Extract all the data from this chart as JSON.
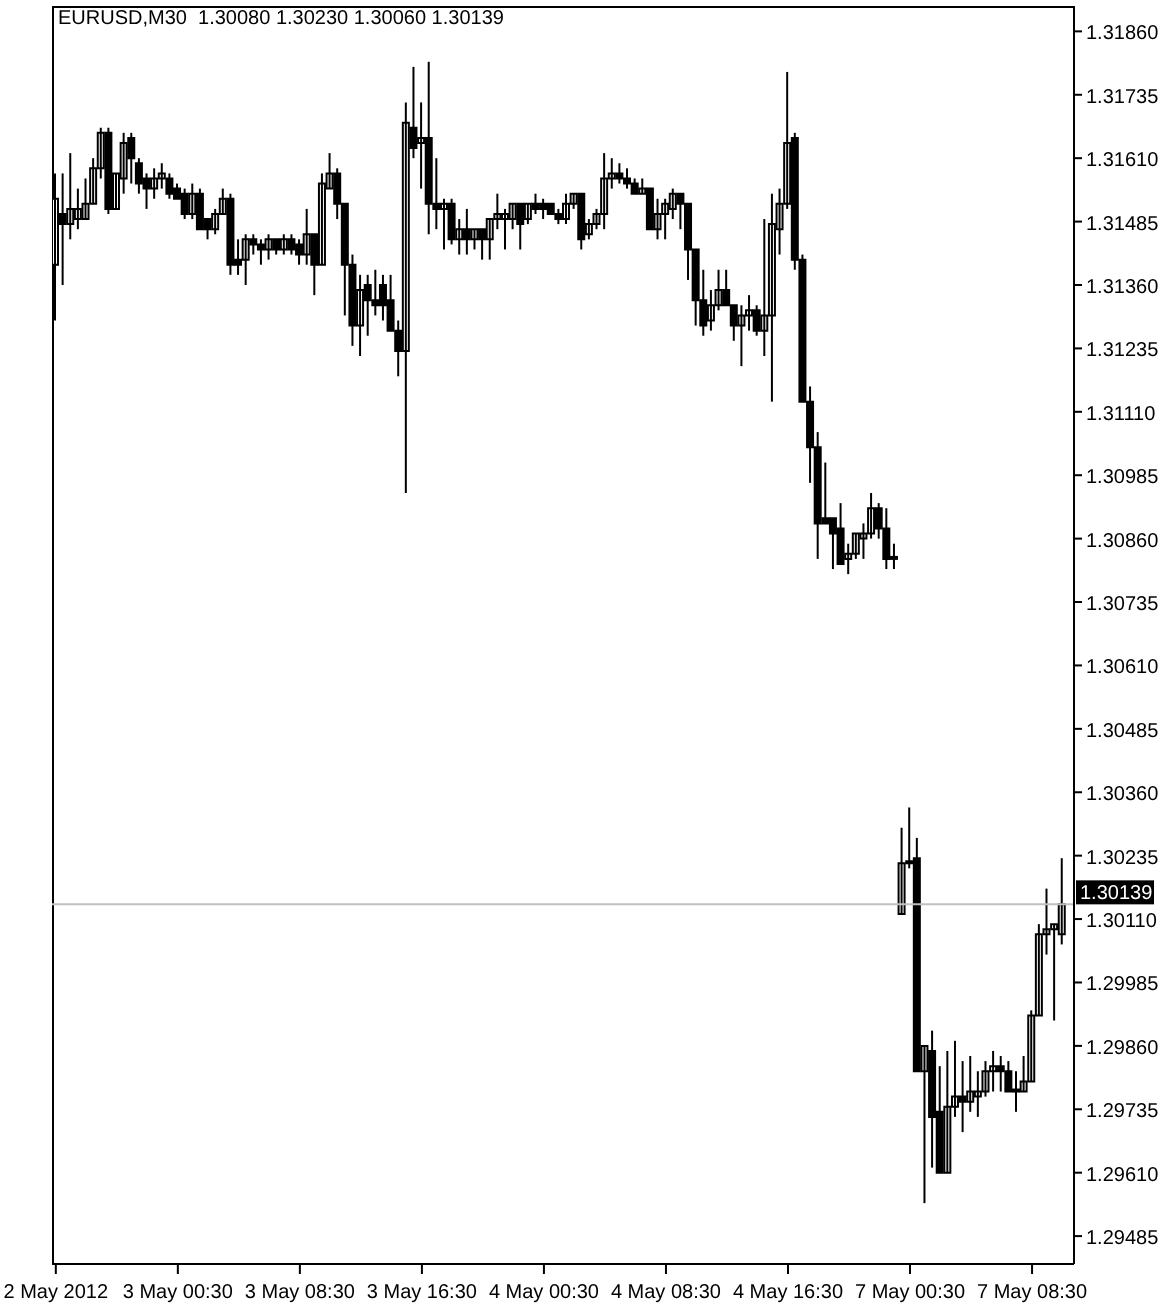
{
  "chart_data": {
    "type": "candlestick",
    "title": "EURUSD,M30  1.30080 1.30230 1.30060 1.30139",
    "color": "#000000",
    "categories": [
      "2 May 2012",
      null,
      null,
      null,
      null,
      null,
      null,
      null,
      null,
      null,
      null,
      null,
      null,
      null,
      null,
      null,
      "3 May 00:30",
      null,
      null,
      null,
      null,
      null,
      null,
      null,
      null,
      null,
      null,
      null,
      null,
      null,
      null,
      null,
      "3 May 08:30",
      null,
      null,
      null,
      null,
      null,
      null,
      null,
      null,
      null,
      null,
      null,
      null,
      null,
      null,
      null,
      "3 May 16:30",
      null,
      null,
      null,
      null,
      null,
      null,
      null,
      null,
      null,
      null,
      null,
      null,
      null,
      null,
      null,
      "4 May 00:30",
      null,
      null,
      null,
      null,
      null,
      null,
      null,
      null,
      null,
      null,
      null,
      null,
      null,
      null,
      null,
      "4 May 08:30",
      null,
      null,
      null,
      null,
      null,
      null,
      null,
      null,
      null,
      null,
      null,
      null,
      null,
      null,
      null,
      "4 May 16:30",
      null,
      null,
      null,
      null,
      null,
      null,
      null,
      null,
      null,
      null,
      null,
      null,
      null,
      null,
      null,
      "7 May 00:30",
      null,
      null,
      null,
      null,
      null,
      null,
      null,
      null,
      null,
      null,
      null,
      null,
      null,
      null,
      null,
      "7 May 08:30",
      null,
      null,
      null,
      null
    ],
    "ohlc": [
      [
        1.314,
        1.3158,
        1.3129,
        1.3153
      ],
      [
        1.315,
        1.3158,
        1.3136,
        1.3148
      ],
      [
        1.3148,
        1.3162,
        1.3145,
        1.3151
      ],
      [
        1.3149,
        1.3155,
        1.3147,
        1.3151
      ],
      [
        1.3149,
        1.3157,
        1.3149,
        1.3152
      ],
      [
        1.3152,
        1.3161,
        1.3152,
        1.3159
      ],
      [
        1.3159,
        1.3167,
        1.3157,
        1.3166
      ],
      [
        1.3166,
        1.3167,
        1.315,
        1.3151
      ],
      [
        1.3151,
        1.3158,
        1.3151,
        1.3158
      ],
      [
        1.3157,
        1.3166,
        1.3154,
        1.3164
      ],
      [
        1.3165,
        1.3166,
        1.3156,
        1.3161
      ],
      [
        1.316,
        1.3161,
        1.3154,
        1.3156
      ],
      [
        1.3157,
        1.3158,
        1.3151,
        1.3155
      ],
      [
        1.3155,
        1.3159,
        1.3153,
        1.3157
      ],
      [
        1.3157,
        1.316,
        1.3155,
        1.3158
      ],
      [
        1.3157,
        1.3158,
        1.3153,
        1.3154
      ],
      [
        1.3155,
        1.3156,
        1.3153,
        1.3153
      ],
      [
        1.3154,
        1.3155,
        1.3149,
        1.315
      ],
      [
        1.315,
        1.3156,
        1.3149,
        1.3154
      ],
      [
        1.3154,
        1.3155,
        1.3147,
        1.3147
      ],
      [
        1.3149,
        1.3149,
        1.3145,
        1.3147
      ],
      [
        1.3147,
        1.3151,
        1.3146,
        1.315
      ],
      [
        1.315,
        1.3155,
        1.315,
        1.3153
      ],
      [
        1.3153,
        1.3154,
        1.3138,
        1.314
      ],
      [
        1.3141,
        1.3145,
        1.3138,
        1.314
      ],
      [
        1.3141,
        1.3146,
        1.3136,
        1.3145
      ],
      [
        1.3145,
        1.3146,
        1.3142,
        1.3144
      ],
      [
        1.3144,
        1.3145,
        1.314,
        1.3143
      ],
      [
        1.3143,
        1.3146,
        1.3141,
        1.3145
      ],
      [
        1.3145,
        1.3145,
        1.3142,
        1.3143
      ],
      [
        1.3143,
        1.3146,
        1.3142,
        1.3145
      ],
      [
        1.3145,
        1.3146,
        1.3142,
        1.3143
      ],
      [
        1.3144,
        1.3145,
        1.314,
        1.3142
      ],
      [
        1.3142,
        1.3151,
        1.314,
        1.3146
      ],
      [
        1.3146,
        1.3146,
        1.3134,
        1.314
      ],
      [
        1.314,
        1.3158,
        1.314,
        1.3156
      ],
      [
        1.3155,
        1.3162,
        1.3155,
        1.3158
      ],
      [
        1.3158,
        1.3159,
        1.3149,
        1.3152
      ],
      [
        1.3152,
        1.3152,
        1.313,
        1.314
      ],
      [
        1.314,
        1.3142,
        1.3124,
        1.3128
      ],
      [
        1.3128,
        1.3138,
        1.3122,
        1.3135
      ],
      [
        1.3136,
        1.3138,
        1.3126,
        1.3133
      ],
      [
        1.3133,
        1.3139,
        1.313,
        1.3132
      ],
      [
        1.3136,
        1.3138,
        1.3129,
        1.3132
      ],
      [
        1.3133,
        1.3138,
        1.3127,
        1.3127
      ],
      [
        1.3127,
        1.3129,
        1.3118,
        1.3123
      ],
      [
        1.3123,
        1.3172,
        1.3095,
        1.3168
      ],
      [
        1.3167,
        1.3179,
        1.3161,
        1.3163
      ],
      [
        1.3164,
        1.3172,
        1.3155,
        1.3165
      ],
      [
        1.3165,
        1.318,
        1.3146,
        1.3152
      ],
      [
        1.3152,
        1.3161,
        1.3147,
        1.3151
      ],
      [
        1.3151,
        1.3153,
        1.3143,
        1.3152
      ],
      [
        1.3152,
        1.3153,
        1.3144,
        1.3145
      ],
      [
        1.3145,
        1.3149,
        1.3142,
        1.3147
      ],
      [
        1.3147,
        1.3151,
        1.3142,
        1.3145
      ],
      [
        1.3145,
        1.3147,
        1.3143,
        1.3147
      ],
      [
        1.3147,
        1.3147,
        1.3141,
        1.3145
      ],
      [
        1.3145,
        1.3149,
        1.3141,
        1.3149
      ],
      [
        1.3149,
        1.3154,
        1.3147,
        1.315
      ],
      [
        1.3149,
        1.3151,
        1.3143,
        1.315
      ],
      [
        1.3149,
        1.3152,
        1.3147,
        1.3152
      ],
      [
        1.3152,
        1.3152,
        1.3143,
        1.3148
      ],
      [
        1.3149,
        1.3152,
        1.3148,
        1.3152
      ],
      [
        1.3152,
        1.3154,
        1.315,
        1.3151
      ],
      [
        1.3152,
        1.3153,
        1.3149,
        1.3151
      ],
      [
        1.3152,
        1.3152,
        1.315,
        1.315
      ],
      [
        1.315,
        1.3151,
        1.3148,
        1.3149
      ],
      [
        1.3149,
        1.3154,
        1.3148,
        1.3152
      ],
      [
        1.3152,
        1.3154,
        1.3151,
        1.3154
      ],
      [
        1.3154,
        1.3154,
        1.3143,
        1.3145
      ],
      [
        1.3146,
        1.3149,
        1.3145,
        1.3148
      ],
      [
        1.3148,
        1.3151,
        1.3147,
        1.315
      ],
      [
        1.315,
        1.3162,
        1.3147,
        1.3157
      ],
      [
        1.3157,
        1.3161,
        1.3155,
        1.3158
      ],
      [
        1.3158,
        1.316,
        1.3156,
        1.3157
      ],
      [
        1.3157,
        1.3159,
        1.3155,
        1.3156
      ],
      [
        1.3156,
        1.3157,
        1.3154,
        1.3154
      ],
      [
        1.3154,
        1.3157,
        1.3154,
        1.3155
      ],
      [
        1.3155,
        1.3155,
        1.3147,
        1.3147
      ],
      [
        1.3147,
        1.3153,
        1.3145,
        1.315
      ],
      [
        1.315,
        1.3153,
        1.3145,
        1.3152
      ],
      [
        1.3151,
        1.3155,
        1.3149,
        1.3154
      ],
      [
        1.3154,
        1.3154,
        1.3147,
        1.3152
      ],
      [
        1.3152,
        1.3152,
        1.3137,
        1.3143
      ],
      [
        1.3143,
        1.3143,
        1.3128,
        1.3133
      ],
      [
        1.3133,
        1.3139,
        1.3126,
        1.3128
      ],
      [
        1.3129,
        1.3135,
        1.3127,
        1.3132
      ],
      [
        1.3132,
        1.3139,
        1.3131,
        1.3135
      ],
      [
        1.3135,
        1.3139,
        1.3132,
        1.3132
      ],
      [
        1.3132,
        1.3132,
        1.3125,
        1.3128
      ],
      [
        1.3128,
        1.3132,
        1.312,
        1.313
      ],
      [
        1.313,
        1.3134,
        1.3127,
        1.3131
      ],
      [
        1.3131,
        1.3132,
        1.3126,
        1.3127
      ],
      [
        1.3127,
        1.3149,
        1.3122,
        1.313
      ],
      [
        1.313,
        1.3154,
        1.3113,
        1.3148
      ],
      [
        1.3147,
        1.3155,
        1.3142,
        1.3152
      ],
      [
        1.3152,
        1.3178,
        1.3151,
        1.3164
      ],
      [
        1.3165,
        1.3166,
        1.3139,
        1.3141
      ],
      [
        1.3141,
        1.3142,
        1.3113,
        1.3113
      ],
      [
        1.3113,
        1.3116,
        1.3097,
        1.3104
      ],
      [
        1.3104,
        1.3107,
        1.3082,
        1.3089
      ],
      [
        1.309,
        1.3101,
        1.3089,
        1.3089
      ],
      [
        1.309,
        1.309,
        1.308,
        1.3087
      ],
      [
        1.3088,
        1.3093,
        1.3081,
        1.3081
      ],
      [
        1.3082,
        1.3085,
        1.3079,
        1.3083
      ],
      [
        1.3083,
        1.3087,
        1.3082,
        1.3087
      ],
      [
        1.3086,
        1.3089,
        1.3082,
        1.3087
      ],
      [
        1.3087,
        1.3095,
        1.3086,
        1.3092
      ],
      [
        1.3092,
        1.3093,
        1.3086,
        1.3088
      ],
      [
        1.3088,
        1.3092,
        1.308,
        1.3082
      ],
      [
        1.3082,
        1.3085,
        1.308,
        1.3082
      ],
      [
        1.3012,
        1.3029,
        1.3012,
        1.3022
      ],
      [
        1.3022,
        1.3033,
        1.3021,
        1.3022
      ],
      [
        1.3023,
        1.3027,
        1.2981,
        1.2981
      ],
      [
        1.2981,
        1.2986,
        1.2955,
        1.2986
      ],
      [
        1.2985,
        1.2989,
        1.2962,
        1.2972
      ],
      [
        1.2973,
        1.2982,
        1.2961,
        1.2961
      ],
      [
        1.2961,
        1.2985,
        1.2961,
        1.2974
      ],
      [
        1.2974,
        1.2987,
        1.2972,
        1.2976
      ],
      [
        1.2976,
        1.2983,
        1.2969,
        1.2975
      ],
      [
        1.2975,
        1.2984,
        1.2973,
        1.2977
      ],
      [
        1.2976,
        1.2981,
        1.2972,
        1.2977
      ],
      [
        1.2977,
        1.2983,
        1.2976,
        1.2981
      ],
      [
        1.2981,
        1.2985,
        1.2977,
        1.2982
      ],
      [
        1.2982,
        1.2984,
        1.2977,
        1.2981
      ],
      [
        1.2981,
        1.2983,
        1.2977,
        1.2977
      ],
      [
        1.2977,
        1.2981,
        1.2973,
        1.2977
      ],
      [
        1.2977,
        1.2984,
        1.2977,
        1.2979
      ],
      [
        1.2979,
        1.2993,
        1.2979,
        1.2992
      ],
      [
        1.2992,
        1.301,
        1.2992,
        1.3008
      ],
      [
        1.3008,
        1.3017,
        1.3004,
        1.3009
      ],
      [
        1.3009,
        1.301,
        1.2991,
        1.301
      ],
      [
        1.3008,
        1.3023,
        1.3006,
        1.30139
      ]
    ],
    "ylim": [
      1.2943,
      1.3191
    ],
    "yticks": [
      1.29485,
      {
        "value": 1.2961,
        "label": "1.29610"
      },
      1.29735,
      {
        "value": 1.2986,
        "label": "1.29860"
      },
      1.29985,
      {
        "value": 1.3011,
        "label": "1.30110"
      },
      1.30235,
      {
        "value": 1.3036,
        "label": "1.30360"
      },
      1.30485,
      {
        "value": 1.3061,
        "label": "1.30610"
      },
      1.30735,
      {
        "value": 1.3086,
        "label": "1.30860"
      },
      1.30985,
      {
        "value": 1.3111,
        "label": "1.31110"
      },
      1.31235,
      {
        "value": 1.3136,
        "label": "1.31360"
      },
      1.31485,
      {
        "value": 1.3161,
        "label": "1.31610"
      },
      1.31735,
      {
        "value": 1.3186,
        "label": "1.31860"
      }
    ],
    "ref_lines": [
      {
        "axis": "y",
        "value": 1.30139,
        "label": "1.30139",
        "color": "#c0c0c0"
      }
    ]
  }
}
